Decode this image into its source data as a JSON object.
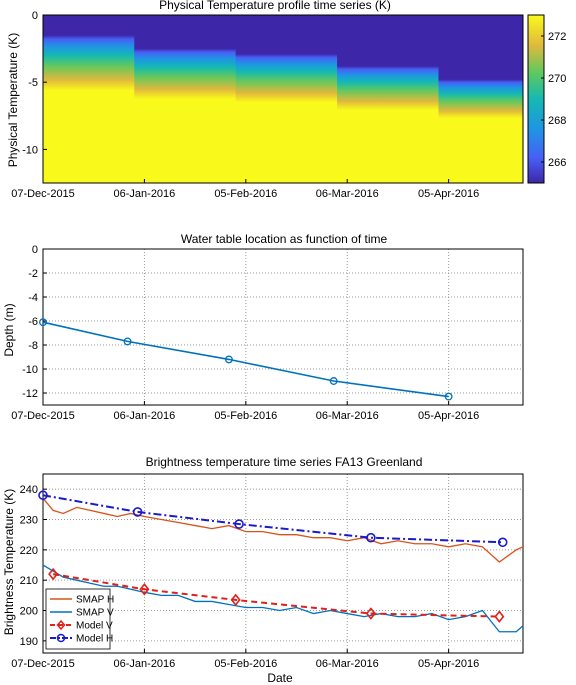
{
  "chart_data": [
    {
      "type": "heatmap",
      "title": "Physical Temperature profile time series (K)",
      "ylabel": "Physical Temperature (K)",
      "xlabel": "",
      "x_ticks": [
        "07-Dec-2015",
        "06-Jan-2016",
        "05-Feb-2016",
        "06-Mar-2016",
        "05-Apr-2016"
      ],
      "y_ticks": [
        "0",
        "-5",
        "-10"
      ],
      "ylim": [
        -12.5,
        0
      ],
      "colorbar": {
        "ticks": [
          266,
          268,
          270,
          272
        ],
        "range": [
          265,
          273
        ]
      },
      "segments": [
        {
          "x_start_day": 0,
          "x_end_day": 27,
          "cold_bottom_depth": -1.5
        },
        {
          "x_start_day": 27,
          "x_end_day": 57,
          "cold_bottom_depth": -2.5
        },
        {
          "x_start_day": 57,
          "x_end_day": 87,
          "cold_bottom_depth": -2.9
        },
        {
          "x_start_day": 87,
          "x_end_day": 117,
          "cold_bottom_depth": -3.8
        },
        {
          "x_start_day": 117,
          "x_end_day": 142,
          "cold_bottom_depth": -4.8
        }
      ]
    },
    {
      "type": "line",
      "title": "Water table location as function of time",
      "ylabel": "Depth (m)",
      "xlabel": "",
      "x_ticks": [
        "07-Dec-2015",
        "06-Jan-2016",
        "05-Feb-2016",
        "06-Mar-2016",
        "05-Apr-2016"
      ],
      "y_ticks": [
        "0",
        "-2",
        "-4",
        "-6",
        "-8",
        "-10",
        "-12"
      ],
      "ylim": [
        -13,
        0
      ],
      "grid": true,
      "series": [
        {
          "x": [
            "2015-12-07",
            "2016-01-01",
            "2016-01-31",
            "2016-03-02",
            "2016-04-05"
          ],
          "values": [
            -6.1,
            -7.7,
            -9.2,
            -11.0,
            -12.3
          ]
        }
      ]
    },
    {
      "type": "line",
      "title": "Brightness temperature time series FA13 Greenland",
      "ylabel": "Brightness Temperature (K)",
      "xlabel": "Date",
      "x_ticks": [
        "07-Dec-2015",
        "06-Jan-2016",
        "05-Feb-2016",
        "06-Mar-2016",
        "05-Apr-2016"
      ],
      "y_ticks": [
        "190",
        "200",
        "210",
        "220",
        "230",
        "240"
      ],
      "ylim": [
        186,
        245
      ],
      "grid": true,
      "legend_position": "bottom-left",
      "legend": [
        "SMAP H",
        "SMAP V",
        "Model V",
        "Model H"
      ],
      "series": [
        {
          "name": "SMAP H",
          "color": "#d95319",
          "style": "solid",
          "x": [
            0,
            3,
            6,
            10,
            14,
            18,
            22,
            26,
            30,
            35,
            40,
            45,
            50,
            55,
            60,
            65,
            70,
            75,
            80,
            85,
            90,
            95,
            100,
            105,
            110,
            115,
            120,
            125,
            130,
            135,
            140,
            142
          ],
          "values": [
            237,
            233,
            232,
            234,
            233,
            232,
            231,
            232,
            231,
            230,
            229,
            228,
            227,
            228,
            226,
            226,
            225,
            225,
            224,
            224,
            223,
            224,
            222,
            223,
            222,
            222,
            221,
            222,
            221,
            216,
            220,
            221
          ]
        },
        {
          "name": "SMAP V",
          "color": "#0072bd",
          "style": "solid",
          "x": [
            0,
            3,
            6,
            10,
            14,
            18,
            22,
            26,
            30,
            35,
            40,
            45,
            50,
            55,
            60,
            65,
            70,
            75,
            80,
            85,
            90,
            95,
            100,
            105,
            110,
            115,
            120,
            125,
            130,
            135,
            140,
            142
          ],
          "values": [
            215,
            213,
            211,
            210,
            209,
            208,
            208,
            207,
            206,
            205,
            205,
            203,
            203,
            202,
            201,
            201,
            200,
            201,
            199,
            200,
            199,
            198,
            199,
            198,
            198,
            199,
            197,
            198,
            200,
            193,
            193,
            195
          ]
        },
        {
          "name": "Model V",
          "color": "#e0201a",
          "style": "dashed",
          "marker": "diamond",
          "x": [
            3,
            30,
            57,
            97,
            135
          ],
          "values": [
            212,
            207,
            203.5,
            199,
            198
          ]
        },
        {
          "name": "Model H",
          "color": "#1a1acc",
          "style": "dashdot",
          "marker": "circle",
          "x": [
            0,
            28,
            58,
            97,
            136
          ],
          "values": [
            238,
            232.5,
            228.5,
            224,
            222.5
          ]
        }
      ]
    }
  ]
}
